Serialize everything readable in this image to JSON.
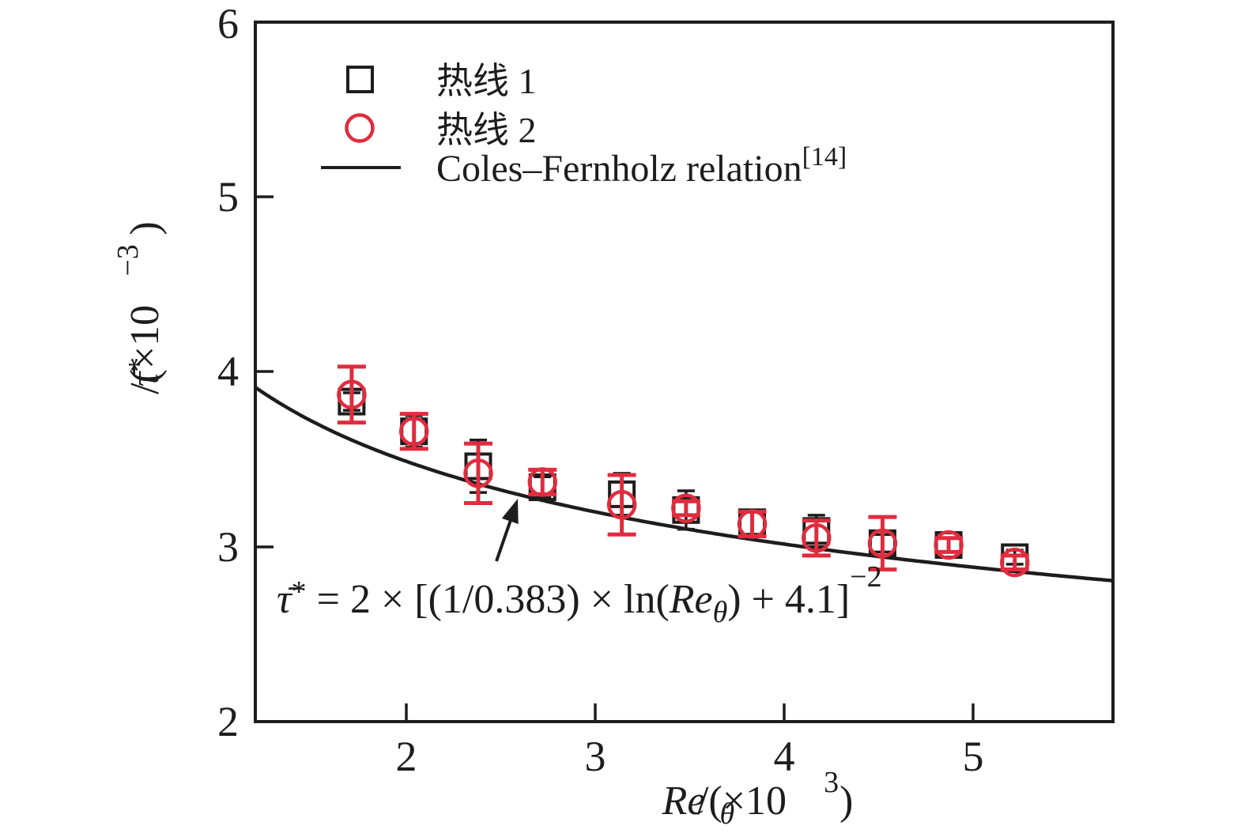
{
  "figure": {
    "background": "#ffffff",
    "frame_color": "#1f1c1d"
  },
  "chart_data": {
    "type": "scatter",
    "x_axis": {
      "label": "Re_theta/(x10^3)",
      "label_parts": {
        "re": "Re",
        "theta": "θ",
        "rest": "/(×10",
        "sup": "3",
        "close": ")"
      },
      "ticks": [
        2,
        3,
        4,
        5
      ],
      "tick_labels": [
        "2",
        "3",
        "4",
        "5"
      ],
      "range": [
        1.2,
        5.74
      ],
      "grid": false
    },
    "y_axis": {
      "label": "tau-bar*/(x10^-3)",
      "label_parts": {
        "tau": "τ̄",
        "star": "*",
        "rest": "/(×10",
        "sup": "−3",
        "close": ")"
      },
      "ticks": [
        2,
        3,
        4,
        5,
        6
      ],
      "tick_labels": [
        "2",
        "3",
        "4",
        "5",
        "6"
      ],
      "range": [
        2,
        6
      ],
      "grid": false
    },
    "series": [
      {
        "name": "热线 1",
        "marker": "square",
        "color": "#1f1c1d",
        "x": [
          1.71,
          2.04,
          2.38,
          2.72,
          3.14,
          3.48,
          3.83,
          4.17,
          4.52,
          4.87,
          5.22
        ],
        "y": [
          3.83,
          3.66,
          3.46,
          3.34,
          3.3,
          3.21,
          3.14,
          3.09,
          3.02,
          3.01,
          2.94
        ],
        "yerr": [
          0.05,
          0.09,
          0.15,
          0.06,
          0.12,
          0.11,
          0.07,
          0.09,
          0.05,
          0.04,
          0.04
        ]
      },
      {
        "name": "热线 2",
        "marker": "circle",
        "color": "#e02c3e",
        "x": [
          1.71,
          2.04,
          2.38,
          2.72,
          3.14,
          3.48,
          3.83,
          4.17,
          4.52,
          4.87,
          5.22
        ],
        "y": [
          3.87,
          3.66,
          3.42,
          3.37,
          3.24,
          3.22,
          3.13,
          3.05,
          3.02,
          3.01,
          2.91
        ],
        "yerr": [
          0.16,
          0.1,
          0.17,
          0.07,
          0.17,
          0.04,
          0.07,
          0.1,
          0.15,
          0.04,
          0.04
        ]
      },
      {
        "name": "Coles–Fernholz relation",
        "name_sup": "[14]",
        "marker": "line",
        "color": "#1f1c1d",
        "formula": "tau* = 2×[(1/0.383)×ln(Re_theta)+4.1]^-2",
        "params": {
          "scale": 2,
          "kappa": 0.383,
          "offset": 4.1
        }
      }
    ],
    "legend": {
      "position": "upper-left",
      "items": [
        {
          "label": "热线 1"
        },
        {
          "label": "热线 2"
        },
        {
          "label": "Coles–Fernholz relation",
          "label_sup": "[14]"
        }
      ]
    },
    "annotation": {
      "parts": {
        "tau": "τ̄",
        "star": "*",
        "mid": " = 2 × [(1/0.383) × ln(",
        "re": "Re",
        "theta": "θ",
        "tail": ") + 4.1]",
        "sup": "−2"
      }
    }
  }
}
